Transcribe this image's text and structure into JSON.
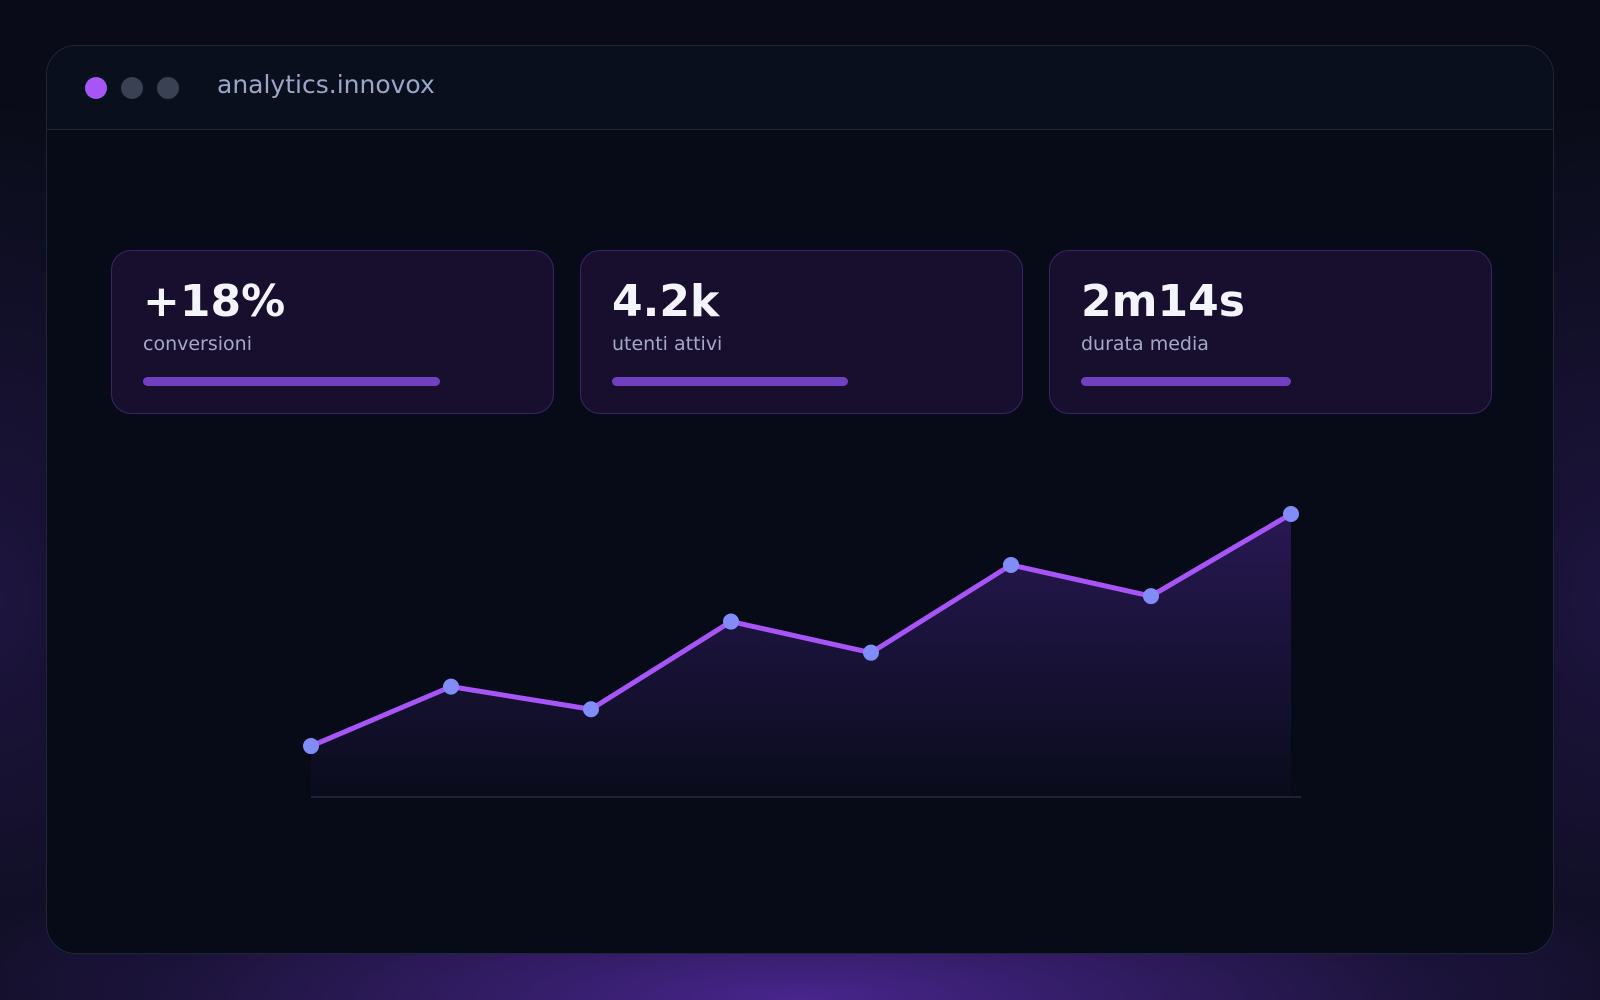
{
  "window": {
    "title": "analytics.innovox"
  },
  "metrics": [
    {
      "value": "+18%",
      "label": "conversioni",
      "progress": 78
    },
    {
      "value": "4.2k",
      "label": "utenti attivi",
      "progress": 62
    },
    {
      "value": "2m14s",
      "label": "durata media",
      "progress": 55
    }
  ],
  "chart_data": {
    "type": "line",
    "values": [
      18,
      39,
      31,
      62,
      51,
      82,
      71,
      100
    ],
    "color": "#a855f7",
    "marker_color": "#818cf8"
  }
}
